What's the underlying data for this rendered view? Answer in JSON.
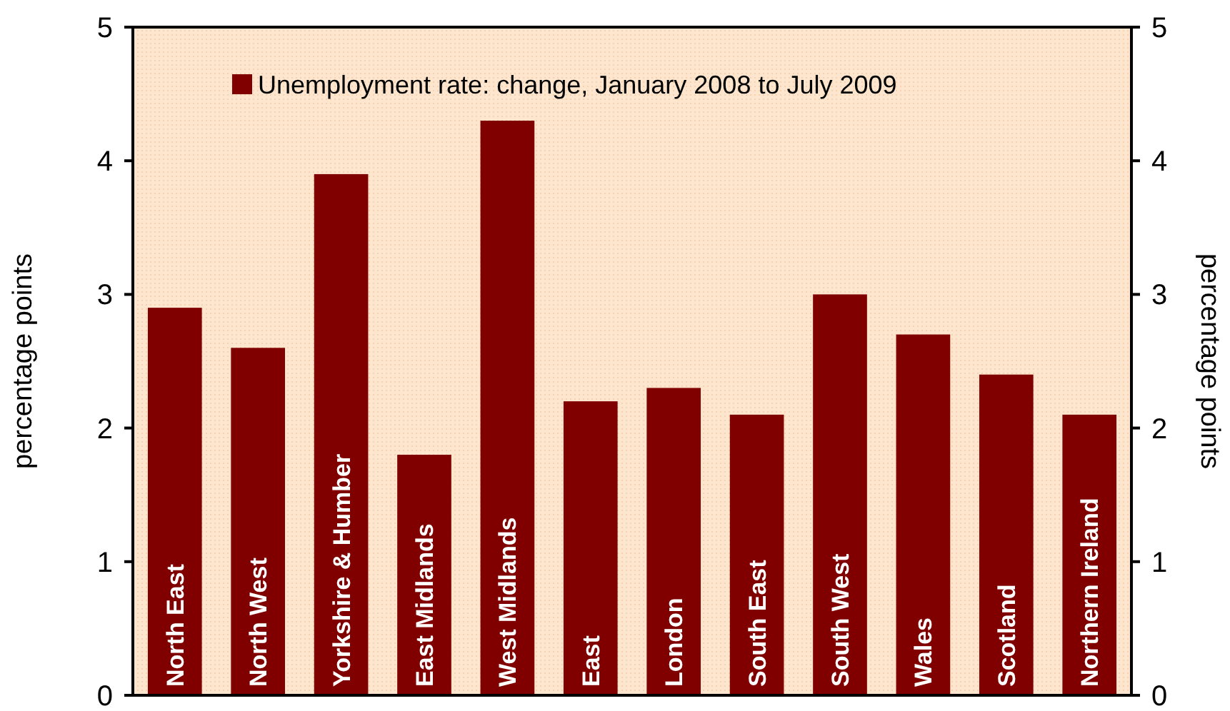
{
  "chart_data": {
    "type": "bar",
    "categories": [
      "North East",
      "North West",
      "Yorkshire & Humber",
      "East Midlands",
      "West Midlands",
      "East",
      "London",
      "South East",
      "South West",
      "Wales",
      "Scotland",
      "Northern Ireland"
    ],
    "series": [
      {
        "name": "Unemployment rate:  change, January 2008 to July 2009",
        "color": "#800000",
        "values": [
          2.9,
          2.6,
          3.9,
          1.8,
          4.3,
          2.2,
          2.3,
          2.1,
          3.0,
          2.7,
          2.4,
          2.1
        ]
      }
    ],
    "ylabel": "percentage points",
    "y2label": "percentage points",
    "ylim": [
      0,
      5
    ],
    "yticks": [
      0,
      1,
      2,
      3,
      4,
      5
    ],
    "y2lim": [
      0,
      5
    ],
    "y2ticks": [
      0,
      1,
      2,
      3,
      4,
      5
    ],
    "legend": "top",
    "grid": false
  }
}
